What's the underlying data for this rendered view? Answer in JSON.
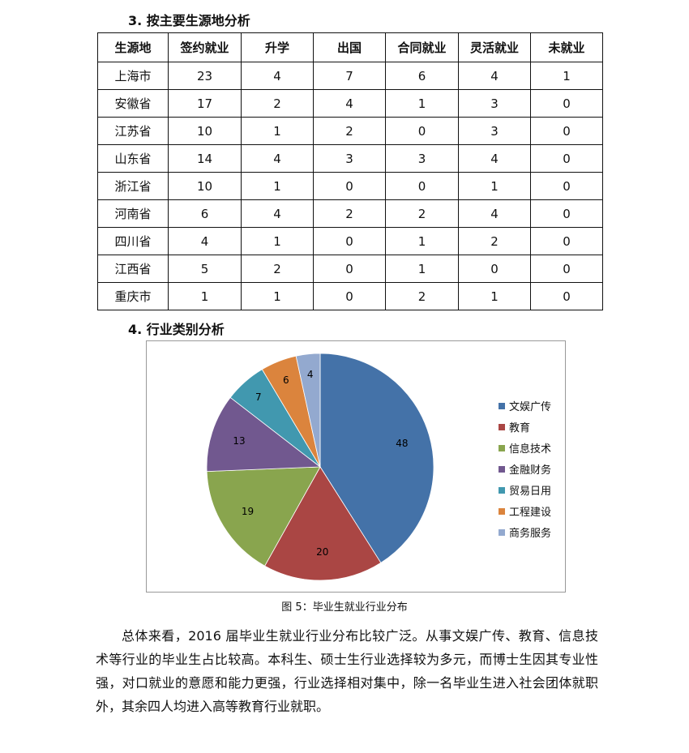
{
  "section3_title": "3. 按主要生源地分析",
  "table": {
    "headers": [
      "生源地",
      "签约就业",
      "升学",
      "出国",
      "合同就业",
      "灵活就业",
      "未就业"
    ],
    "rows": [
      [
        "上海市",
        "23",
        "4",
        "7",
        "6",
        "4",
        "1"
      ],
      [
        "安徽省",
        "17",
        "2",
        "4",
        "1",
        "3",
        "0"
      ],
      [
        "江苏省",
        "10",
        "1",
        "2",
        "0",
        "3",
        "0"
      ],
      [
        "山东省",
        "14",
        "4",
        "3",
        "3",
        "4",
        "0"
      ],
      [
        "浙江省",
        "10",
        "1",
        "0",
        "0",
        "1",
        "0"
      ],
      [
        "河南省",
        "6",
        "4",
        "2",
        "2",
        "4",
        "0"
      ],
      [
        "四川省",
        "4",
        "1",
        "0",
        "1",
        "2",
        "0"
      ],
      [
        "江西省",
        "5",
        "2",
        "0",
        "1",
        "0",
        "0"
      ],
      [
        "重庆市",
        "1",
        "1",
        "0",
        "2",
        "1",
        "0"
      ]
    ]
  },
  "section4_title": "4. 行业类别分析",
  "chart_data": {
    "type": "pie",
    "categories": [
      "文娱广传",
      "教育",
      "信息技术",
      "金融财务",
      "贸易日用",
      "工程建设",
      "商务服务"
    ],
    "values": [
      48,
      20,
      19,
      13,
      7,
      6,
      4
    ],
    "colors": [
      "#4472a8",
      "#aa4644",
      "#89a54e",
      "#71588f",
      "#4198af",
      "#db843d",
      "#93a9cf"
    ],
    "legend": "right",
    "data_labels": true
  },
  "caption": "图 5：毕业生就业行业分布",
  "paragraph": "总体来看，2016 届毕业生就业行业分布比较广泛。从事文娱广传、教育、信息技术等行业的毕业生占比较高。本科生、硕士生行业选择较为多元，而博士生因其专业性强，对口就业的意愿和能力更强，行业选择相对集中，除一名毕业生进入社会团体就职外，其余四人均进入高等教育行业就职。"
}
